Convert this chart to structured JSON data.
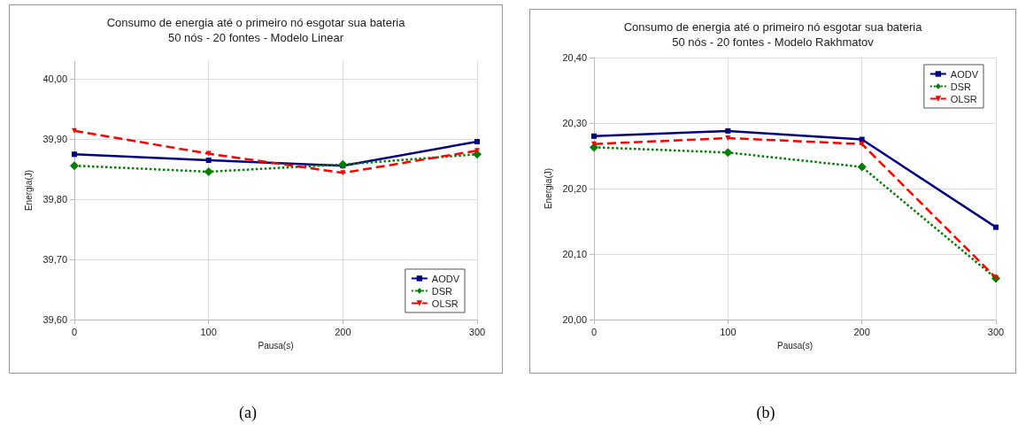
{
  "chart_data": [
    {
      "type": "line",
      "title": "Consumo de energia até o primeiro nó esgotar sua bateria",
      "subtitle": "50 nós - 20 fontes - Modelo Linear",
      "xlabel": "Pausa(s)",
      "ylabel": "Energia(J)",
      "annotations": [
        "(a)"
      ],
      "x": [
        0,
        100,
        200,
        300
      ],
      "xlim": [
        0,
        300
      ],
      "xticks": [
        0,
        100,
        200,
        300
      ],
      "ylim": [
        39.6,
        40.03
      ],
      "yticks": [
        {
          "value": 39.6,
          "label": "39,60"
        },
        {
          "value": 39.7,
          "label": "39,70"
        },
        {
          "value": 39.8,
          "label": "39,80"
        },
        {
          "value": 39.9,
          "label": "39,90"
        },
        {
          "value": 40.0,
          "label": "40,00"
        }
      ],
      "grid": true,
      "legend": "bottom right",
      "series": [
        {
          "name": "AODV",
          "color": "#000080",
          "marker": "square",
          "line_style": "solid",
          "values": [
            39.875,
            39.865,
            39.856,
            39.896
          ]
        },
        {
          "name": "DSR",
          "color": "#008000",
          "marker": "diamond",
          "line_style": "dotted",
          "values": [
            39.856,
            39.846,
            39.858,
            39.875
          ]
        },
        {
          "name": "OLSR",
          "color": "#ff0000",
          "marker": "triangle",
          "line_style": "dashed",
          "values": [
            39.914,
            39.876,
            39.844,
            39.881
          ]
        }
      ]
    },
    {
      "type": "line",
      "title": "Consumo de energia até o primeiro nó esgotar sua bateria",
      "subtitle": "50 nós - 20 fontes - Modelo Rakhmatov",
      "xlabel": "Pausa(s)",
      "ylabel": "Energia(J)",
      "annotations": [
        "(b)"
      ],
      "x": [
        0,
        100,
        200,
        300
      ],
      "xlim": [
        0,
        300
      ],
      "xticks": [
        0,
        100,
        200,
        300
      ],
      "ylim": [
        20.0,
        20.4
      ],
      "yticks": [
        {
          "value": 20.0,
          "label": "20,00"
        },
        {
          "value": 20.1,
          "label": "20,10"
        },
        {
          "value": 20.2,
          "label": "20,20"
        },
        {
          "value": 20.3,
          "label": "20,30"
        },
        {
          "value": 20.4,
          "label": "20,40"
        }
      ],
      "grid": true,
      "legend": "top right",
      "series": [
        {
          "name": "AODV",
          "color": "#000080",
          "marker": "square",
          "line_style": "solid",
          "values": [
            20.28,
            20.288,
            20.275,
            20.141
          ]
        },
        {
          "name": "DSR",
          "color": "#008000",
          "marker": "diamond",
          "line_style": "dotted",
          "values": [
            20.263,
            20.255,
            20.233,
            20.063
          ]
        },
        {
          "name": "OLSR",
          "color": "#ff0000",
          "marker": "triangle",
          "line_style": "dashed",
          "values": [
            20.268,
            20.277,
            20.268,
            20.064
          ]
        }
      ]
    }
  ]
}
